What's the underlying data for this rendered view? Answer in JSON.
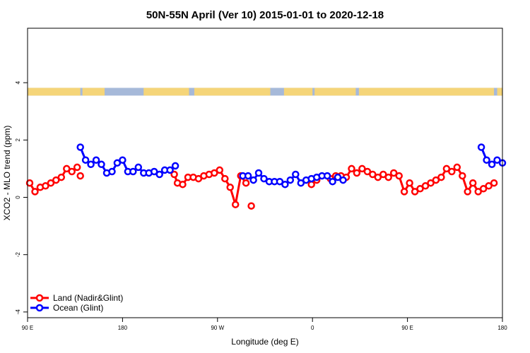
{
  "chart_data": {
    "type": "line",
    "title": "50N-55N April (Ver 10)   2015-01-01 to 2020-12-18",
    "xlabel": "Longitude (deg E)",
    "ylabel": "XCO2 - MLO trend (ppm)",
    "x_ticks": [
      {
        "value": 90,
        "label": "90 E"
      },
      {
        "value": 180,
        "label": "180"
      },
      {
        "value": 270,
        "label": "90 W"
      },
      {
        "value": 360,
        "label": "0"
      },
      {
        "value": 450,
        "label": "90 E"
      },
      {
        "value": 540,
        "label": "180"
      }
    ],
    "y_ticks": [
      {
        "value": -4,
        "label": "-4"
      },
      {
        "value": -2,
        "label": "-2"
      },
      {
        "value": 0,
        "label": "0"
      },
      {
        "value": 2,
        "label": "2"
      },
      {
        "value": 4,
        "label": "4"
      }
    ],
    "xlim": [
      90,
      540
    ],
    "ylim": [
      -4.2,
      5.9
    ],
    "grid": false,
    "legend_position": "bottom-left",
    "land_ocean_band": {
      "y_range": [
        3.55,
        3.82
      ],
      "land_color": "#f5d579",
      "ocean_color": "#a6b9d9",
      "land_segments": [
        [
          90,
          140
        ],
        [
          142,
          163
        ],
        [
          200,
          243
        ],
        [
          248,
          320
        ],
        [
          333,
          360
        ],
        [
          362,
          401
        ],
        [
          404,
          532
        ],
        [
          535,
          540
        ]
      ]
    },
    "series": [
      {
        "name": "Land (Nadir&Glint)",
        "color": "#ff0000",
        "segments": [
          {
            "x": [
              92,
              97,
              102,
              107,
              112,
              117,
              122,
              127,
              132,
              137
            ],
            "y": [
              0.5,
              0.2,
              0.35,
              0.4,
              0.5,
              0.6,
              0.7,
              1.0,
              0.9,
              1.05
            ]
          },
          {
            "x": [
              140
            ],
            "y": [
              0.75
            ]
          },
          {
            "x": [
              229,
              232,
              237,
              242,
              247,
              252,
              257,
              262,
              267,
              272,
              277,
              282,
              287,
              292,
              297
            ],
            "y": [
              0.8,
              0.5,
              0.45,
              0.7,
              0.7,
              0.65,
              0.75,
              0.8,
              0.85,
              0.95,
              0.65,
              0.35,
              -0.25,
              0.75,
              0.5
            ]
          },
          {
            "x": [
              302
            ],
            "y": [
              -0.3
            ]
          },
          {
            "x": [
              359,
              364
            ],
            "y": [
              0.45,
              0.6
            ]
          },
          {
            "x": [
              377,
              382,
              387,
              392,
              397,
              402,
              407,
              412,
              417,
              422,
              427,
              432,
              437,
              442,
              447,
              452,
              457,
              462,
              467,
              472,
              477,
              482,
              487,
              492,
              497,
              502,
              507,
              512,
              517,
              522,
              527,
              532
            ],
            "y": [
              0.65,
              0.75,
              0.75,
              0.7,
              1.0,
              0.85,
              1.0,
              0.9,
              0.8,
              0.7,
              0.8,
              0.7,
              0.85,
              0.75,
              0.2,
              0.5,
              0.2,
              0.3,
              0.4,
              0.5,
              0.6,
              0.7,
              1.0,
              0.9,
              1.05,
              0.75,
              0.2,
              0.5,
              0.2,
              0.3,
              0.4,
              0.5
            ]
          }
        ]
      },
      {
        "name": "Ocean (Glint)",
        "color": "#0000ff",
        "segments": [
          {
            "x": [
              140,
              145,
              150,
              155,
              160,
              165,
              170,
              175,
              180,
              185,
              190,
              195,
              200,
              205,
              210,
              215,
              220,
              225,
              230
            ],
            "y": [
              1.75,
              1.3,
              1.15,
              1.3,
              1.15,
              0.85,
              0.9,
              1.2,
              1.3,
              0.9,
              0.9,
              1.05,
              0.85,
              0.85,
              0.9,
              0.8,
              0.95,
              0.95,
              1.1
            ]
          },
          {
            "x": [
              294,
              299,
              304,
              309,
              314,
              319,
              324,
              329,
              334,
              339,
              344,
              349,
              354,
              359,
              364,
              369,
              374,
              379,
              384,
              389
            ],
            "y": [
              0.75,
              0.75,
              0.6,
              0.85,
              0.65,
              0.55,
              0.55,
              0.55,
              0.45,
              0.6,
              0.8,
              0.5,
              0.6,
              0.65,
              0.7,
              0.75,
              0.75,
              0.55,
              0.7,
              0.6
            ]
          },
          {
            "x": [
              520,
              525,
              530,
              535,
              540
            ],
            "y": [
              1.75,
              1.3,
              1.15,
              1.3,
              1.2
            ]
          }
        ]
      }
    ]
  }
}
